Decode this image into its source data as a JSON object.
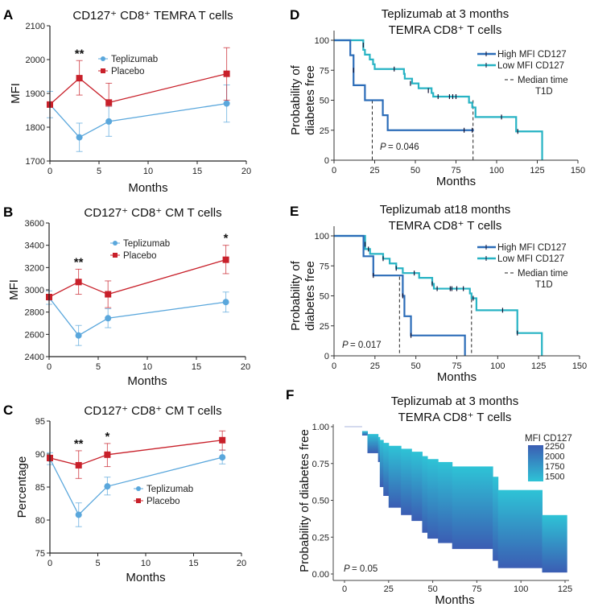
{
  "colors": {
    "teplizumab": "#5aa7dc",
    "placebo": "#c8202a",
    "high_mfi": "#2b6cb8",
    "low_mfi": "#27b3c4",
    "gradient_high": "#3b5db3",
    "gradient_low": "#2ec3d6"
  },
  "chart_data": [
    {
      "panel": "A",
      "type": "line",
      "title": "CD127⁺ CD8⁺ TEMRA T cells",
      "xlabel": "Months",
      "ylabel": "MFI",
      "xlim": [
        0,
        20
      ],
      "ylim": [
        1700,
        2100
      ],
      "xticks": [
        "0",
        "5",
        "10",
        "15",
        "20"
      ],
      "yticks": [
        "1700",
        "1800",
        "1900",
        "2000",
        "2100"
      ],
      "x": [
        0,
        3,
        6,
        18
      ],
      "series": [
        {
          "name": "Teplizumab",
          "marker": "circle",
          "values": [
            1867,
            1770,
            1817,
            1870
          ],
          "err_low": [
            1828,
            1728,
            1773,
            1815
          ],
          "err_high": [
            1906,
            1812,
            1862,
            1925
          ]
        },
        {
          "name": "Placebo",
          "marker": "square",
          "values": [
            1867,
            1945,
            1873,
            1958
          ],
          "err_low": [
            1862,
            1895,
            1862,
            1880
          ],
          "err_high": [
            1872,
            1997,
            1930,
            2035
          ]
        }
      ],
      "annotations": [
        {
          "x": 3,
          "text": "**"
        }
      ],
      "legend": "top-center"
    },
    {
      "panel": "B",
      "type": "line",
      "title": "CD127⁺ CD8⁺ CM T cells",
      "xlabel": "Months",
      "ylabel": "MFI",
      "xlim": [
        0,
        20
      ],
      "ylim": [
        2400,
        3600
      ],
      "xticks": [
        "0",
        "5",
        "10",
        "15",
        "20"
      ],
      "yticks": [
        "2400",
        "2600",
        "2800",
        "3000",
        "3200",
        "3400",
        "3600"
      ],
      "x": [
        0,
        3,
        6,
        18
      ],
      "series": [
        {
          "name": "Teplizumab",
          "marker": "circle",
          "values": [
            2930,
            2590,
            2745,
            2890
          ],
          "err_low": [
            2870,
            2500,
            2660,
            2800
          ],
          "err_high": [
            2990,
            2680,
            2830,
            2980
          ]
        },
        {
          "name": "Placebo",
          "marker": "square",
          "values": [
            2935,
            3070,
            2960,
            3270
          ],
          "err_low": [
            2920,
            2960,
            2840,
            3145
          ],
          "err_high": [
            2950,
            3185,
            3080,
            3400
          ]
        }
      ],
      "annotations": [
        {
          "x": 3,
          "text": "**"
        },
        {
          "x": 18,
          "text": "*"
        }
      ],
      "legend": "top-center"
    },
    {
      "panel": "C",
      "type": "line",
      "title": "CD127⁺ CD8⁺ CM T cells",
      "xlabel": "Months",
      "ylabel": "Percentage",
      "xlim": [
        0,
        20
      ],
      "ylim": [
        75,
        95
      ],
      "xticks": [
        "0",
        "5",
        "10",
        "15",
        "20"
      ],
      "yticks": [
        "75",
        "80",
        "85",
        "90",
        "95"
      ],
      "x": [
        0,
        3,
        6,
        18
      ],
      "series": [
        {
          "name": "Teplizumab",
          "marker": "circle",
          "values": [
            89.3,
            80.8,
            85.1,
            89.5
          ],
          "err_low": [
            88.4,
            79.0,
            83.8,
            88.5
          ],
          "err_high": [
            90.2,
            82.6,
            86.5,
            90.6
          ]
        },
        {
          "name": "Placebo",
          "marker": "square",
          "values": [
            89.4,
            88.3,
            89.9,
            92.1
          ],
          "err_low": [
            89.0,
            86.3,
            88.1,
            90.6
          ],
          "err_high": [
            89.8,
            90.5,
            91.6,
            93.5
          ]
        }
      ],
      "annotations": [
        {
          "x": 3,
          "text": "**"
        },
        {
          "x": 6,
          "text": "*"
        }
      ],
      "legend": "center"
    },
    {
      "panel": "D",
      "type": "line",
      "subtype": "kaplan-meier",
      "title": [
        "Teplizumab at 3 months",
        "TEMRA CD8⁺ T cells"
      ],
      "xlabel": "Months",
      "ylabel": [
        "Probability of",
        "diabetes free"
      ],
      "xlim": [
        0,
        150
      ],
      "ylim": [
        0,
        100
      ],
      "xticks": [
        "0",
        "25",
        "50",
        "75",
        "100",
        "125",
        "150"
      ],
      "yticks": [
        "0",
        "25",
        "50",
        "75",
        "100"
      ],
      "series": [
        {
          "name": "High MFI CD127",
          "steps": [
            [
              0,
              100
            ],
            [
              10,
              87.5
            ],
            [
              12,
              62.5
            ],
            [
              19,
              50
            ],
            [
              30,
              37.5
            ],
            [
              33,
              25
            ]
          ],
          "end": 86,
          "censored": [
            [
              12,
              75
            ],
            [
              80,
              25
            ],
            [
              85,
              25
            ]
          ]
        },
        {
          "name": "Low MFI CD127",
          "steps": [
            [
              0,
              100
            ],
            [
              18,
              92
            ],
            [
              19,
              88
            ],
            [
              22,
              84
            ],
            [
              24,
              80
            ],
            [
              25,
              76
            ],
            [
              43,
              72
            ],
            [
              43.5,
              68
            ],
            [
              48,
              64
            ],
            [
              52,
              60
            ],
            [
              60,
              56
            ],
            [
              61,
              53
            ],
            [
              83,
              48
            ],
            [
              85,
              44
            ],
            [
              87,
              36
            ],
            [
              112,
              24
            ],
            [
              128,
              0
            ]
          ],
          "end": 128,
          "censored": [
            [
              18,
              96
            ],
            [
              37,
              76
            ],
            [
              47,
              64
            ],
            [
              58,
              58
            ],
            [
              64,
              53
            ],
            [
              71,
              53
            ],
            [
              73,
              53
            ],
            [
              75,
              53
            ],
            [
              103,
              36
            ],
            [
              113,
              24
            ]
          ]
        }
      ],
      "median_lines": [
        {
          "x": 23.5,
          "y": 50
        },
        {
          "x": 85.5,
          "y": 50
        }
      ],
      "median_label": [
        "Median time",
        "T1D"
      ],
      "p_label": "P",
      "p_value": "= 0.046",
      "legend": "top-right"
    },
    {
      "panel": "E",
      "type": "line",
      "subtype": "kaplan-meier",
      "title": [
        "Teplizumab at18 months",
        "TEMRA CD8⁺ T cells"
      ],
      "xlabel": "Months",
      "ylabel": [
        "Probability of",
        "diabetes free"
      ],
      "xlim": [
        0,
        150
      ],
      "ylim": [
        0,
        100
      ],
      "xticks": [
        "0",
        "25",
        "50",
        "75",
        "100",
        "125",
        "150"
      ],
      "yticks": [
        "0",
        "25",
        "50",
        "75",
        "100"
      ],
      "series": [
        {
          "name": "High MFI CD127",
          "steps": [
            [
              0,
              100
            ],
            [
              18,
              83
            ],
            [
              24,
              67
            ],
            [
              42,
              50
            ],
            [
              43,
              33
            ],
            [
              47,
              17
            ],
            [
              80,
              0
            ]
          ],
          "end": 80,
          "censored": [
            [
              24,
              67
            ],
            [
              42,
              50
            ],
            [
              47,
              17
            ]
          ]
        },
        {
          "name": "Low MFI CD127",
          "steps": [
            [
              0,
              100
            ],
            [
              19,
              89
            ],
            [
              22,
              85
            ],
            [
              30,
              81
            ],
            [
              34,
              77
            ],
            [
              38,
              73
            ],
            [
              42,
              69
            ],
            [
              52,
              65
            ],
            [
              60,
              60
            ],
            [
              61,
              56
            ],
            [
              83,
              52
            ],
            [
              84,
              48
            ],
            [
              87,
              38
            ],
            [
              112,
              19
            ],
            [
              127,
              0
            ]
          ],
          "end": 127,
          "censored": [
            [
              18,
              97
            ],
            [
              19,
              93
            ],
            [
              21,
              89
            ],
            [
              30,
              81
            ],
            [
              38,
              73
            ],
            [
              49,
              69
            ],
            [
              60,
              60
            ],
            [
              63,
              56
            ],
            [
              71,
              56
            ],
            [
              72,
              56
            ],
            [
              75,
              56
            ],
            [
              79,
              56
            ],
            [
              85,
              48
            ],
            [
              103,
              38
            ],
            [
              112,
              19
            ]
          ]
        }
      ],
      "median_lines": [
        {
          "x": 40,
          "y": 66
        },
        {
          "x": 84,
          "y": 52
        }
      ],
      "median_label": [
        "Median time",
        "T1D"
      ],
      "p_label": "P",
      "p_value": "= 0.017",
      "legend": "top-right"
    },
    {
      "panel": "F",
      "type": "area",
      "subtype": "kaplan-meier-heat",
      "title": [
        "Teplizumab at 3 months",
        "TEMRA CD8⁺ T cells"
      ],
      "xlabel": "Months",
      "ylabel": "Probability of diabetes free",
      "xlim": [
        0,
        125
      ],
      "ylim": [
        0,
        1
      ],
      "xticks": [
        "0",
        "25",
        "50",
        "75",
        "100",
        "125"
      ],
      "yticks": [
        "0.00",
        "0.25",
        "0.50",
        "0.75",
        "1.00"
      ],
      "bands": [
        {
          "x0": 0,
          "x1": 10,
          "upper": 1.0,
          "lower": 1.0
        },
        {
          "x0": 10,
          "x1": 13,
          "upper": 0.97,
          "lower": 0.94
        },
        {
          "x0": 13,
          "x1": 19,
          "upper": 0.95,
          "lower": 0.82
        },
        {
          "x0": 19,
          "x1": 20,
          "upper": 0.93,
          "lower": 0.76
        },
        {
          "x0": 20,
          "x1": 22,
          "upper": 0.91,
          "lower": 0.59
        },
        {
          "x0": 22,
          "x1": 25,
          "upper": 0.89,
          "lower": 0.53
        },
        {
          "x0": 25,
          "x1": 32,
          "upper": 0.87,
          "lower": 0.45
        },
        {
          "x0": 32,
          "x1": 38,
          "upper": 0.85,
          "lower": 0.4
        },
        {
          "x0": 38,
          "x1": 44,
          "upper": 0.83,
          "lower": 0.36
        },
        {
          "x0": 44,
          "x1": 47,
          "upper": 0.8,
          "lower": 0.28
        },
        {
          "x0": 47,
          "x1": 53,
          "upper": 0.78,
          "lower": 0.24
        },
        {
          "x0": 53,
          "x1": 61,
          "upper": 0.76,
          "lower": 0.21
        },
        {
          "x0": 61,
          "x1": 84,
          "upper": 0.73,
          "lower": 0.17
        },
        {
          "x0": 84,
          "x1": 87,
          "upper": 0.66,
          "lower": 0.09
        },
        {
          "x0": 87,
          "x1": 112,
          "upper": 0.57,
          "lower": 0.04
        },
        {
          "x0": 112,
          "x1": 126,
          "upper": 0.4,
          "lower": 0.01
        }
      ],
      "colorbar": {
        "title": "MFI CD127",
        "ticks": [
          "2250",
          "2000",
          "1750",
          "1500"
        ]
      },
      "p_label": "P",
      "p_value": "= 0.05",
      "legend": "top-right"
    }
  ]
}
